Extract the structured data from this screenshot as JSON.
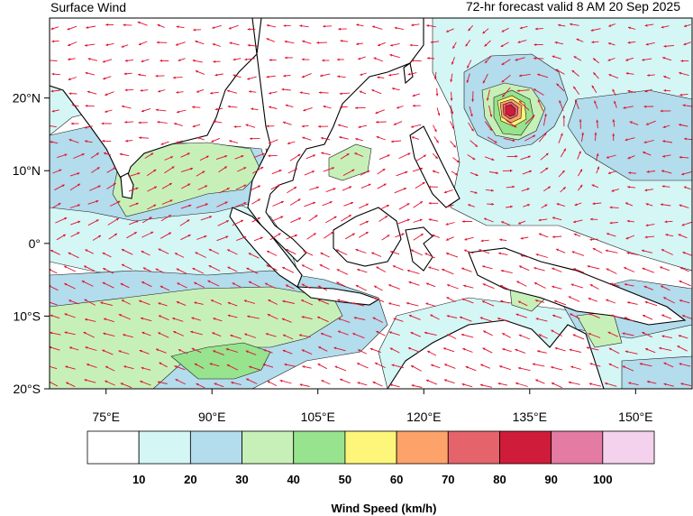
{
  "header": {
    "title": "Surface Wind",
    "valid_time": "72-hr forecast valid 8 AM 20 Sep 2025"
  },
  "map": {
    "lon_range": [
      67,
      158
    ],
    "lat_range": [
      -20,
      31
    ],
    "lon_ticks": [
      {
        "value": 75,
        "label": "75°E"
      },
      {
        "value": 90,
        "label": "90°E"
      },
      {
        "value": 105,
        "label": "105°E"
      },
      {
        "value": 120,
        "label": "120°E"
      },
      {
        "value": 135,
        "label": "135°E"
      },
      {
        "value": 150,
        "label": "150°E"
      }
    ],
    "lat_ticks": [
      {
        "value": 20,
        "label": "20°N"
      },
      {
        "value": 10,
        "label": "10°N"
      },
      {
        "value": 0,
        "label": "0°"
      },
      {
        "value": -10,
        "label": "10°S"
      },
      {
        "value": -20,
        "label": "20°S"
      }
    ],
    "cyclone_center": {
      "lon": 133.9,
      "lat": 18.2
    },
    "arrow_color": "#e0102f",
    "coast_color": "#000000"
  },
  "colorbar": {
    "title": "Wind Speed (km/h)",
    "colors": [
      "#ffffff",
      "#d4f6f5",
      "#b3dcec",
      "#c7f0b8",
      "#97e38e",
      "#fdf67a",
      "#fda36a",
      "#e5636b",
      "#cf1c3a",
      "#e37ba3",
      "#f4d1ec"
    ],
    "labels": [
      "10",
      "20",
      "30",
      "40",
      "50",
      "60",
      "70",
      "80",
      "90",
      "100"
    ]
  }
}
